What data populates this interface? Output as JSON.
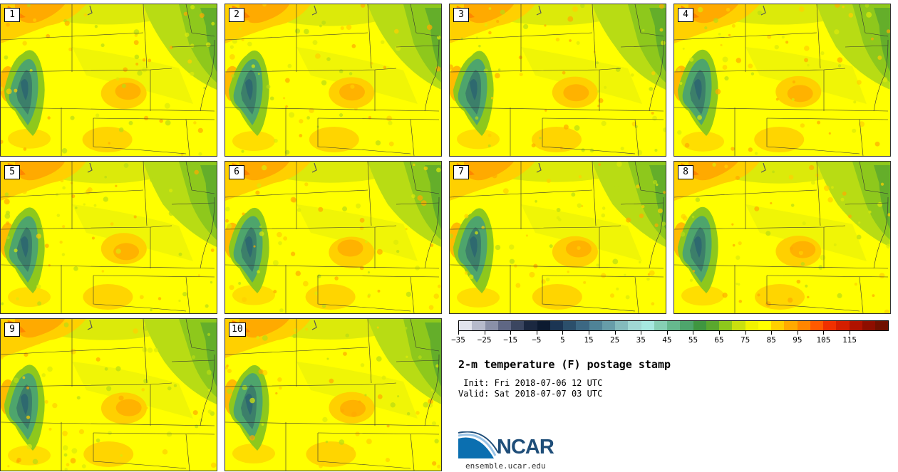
{
  "panels": [
    {
      "label": "1"
    },
    {
      "label": "2"
    },
    {
      "label": "3"
    },
    {
      "label": "4"
    },
    {
      "label": "5"
    },
    {
      "label": "6"
    },
    {
      "label": "7"
    },
    {
      "label": "8"
    },
    {
      "label": "9"
    },
    {
      "label": "10"
    }
  ],
  "colorbar": {
    "colors": [
      "#e1e3ec",
      "#b6bacb",
      "#8a90a8",
      "#5f6784",
      "#3b4660",
      "#1b2840",
      "#0c1a30",
      "#1b3553",
      "#2b4f6b",
      "#3c6883",
      "#4f8397",
      "#679da9",
      "#84bbbd",
      "#a0d8d3",
      "#a6e8e0",
      "#86cfb4",
      "#66b88e",
      "#4ea56c",
      "#3f9640",
      "#5aa82e",
      "#8ec81c",
      "#c9e00f",
      "#f1f300",
      "#ffff00",
      "#ffd000",
      "#ffaa00",
      "#ff8600",
      "#ff5a00",
      "#f03000",
      "#d41e00",
      "#b01200",
      "#8e0e00",
      "#701000"
    ],
    "ticks": [
      "−35",
      "−25",
      "−15",
      "−5",
      "5",
      "15",
      "25",
      "35",
      "45",
      "55",
      "65",
      "75",
      "85",
      "95",
      "105",
      "115"
    ]
  },
  "title": "2-m temperature (F) postage stamp",
  "init_text": " Init: Fri 2018-07-06 12 UTC",
  "valid_text": "Valid: Sat 2018-07-07 03 UTC",
  "logo": {
    "text": "NCAR",
    "url": "ensemble.ucar.edu"
  }
}
